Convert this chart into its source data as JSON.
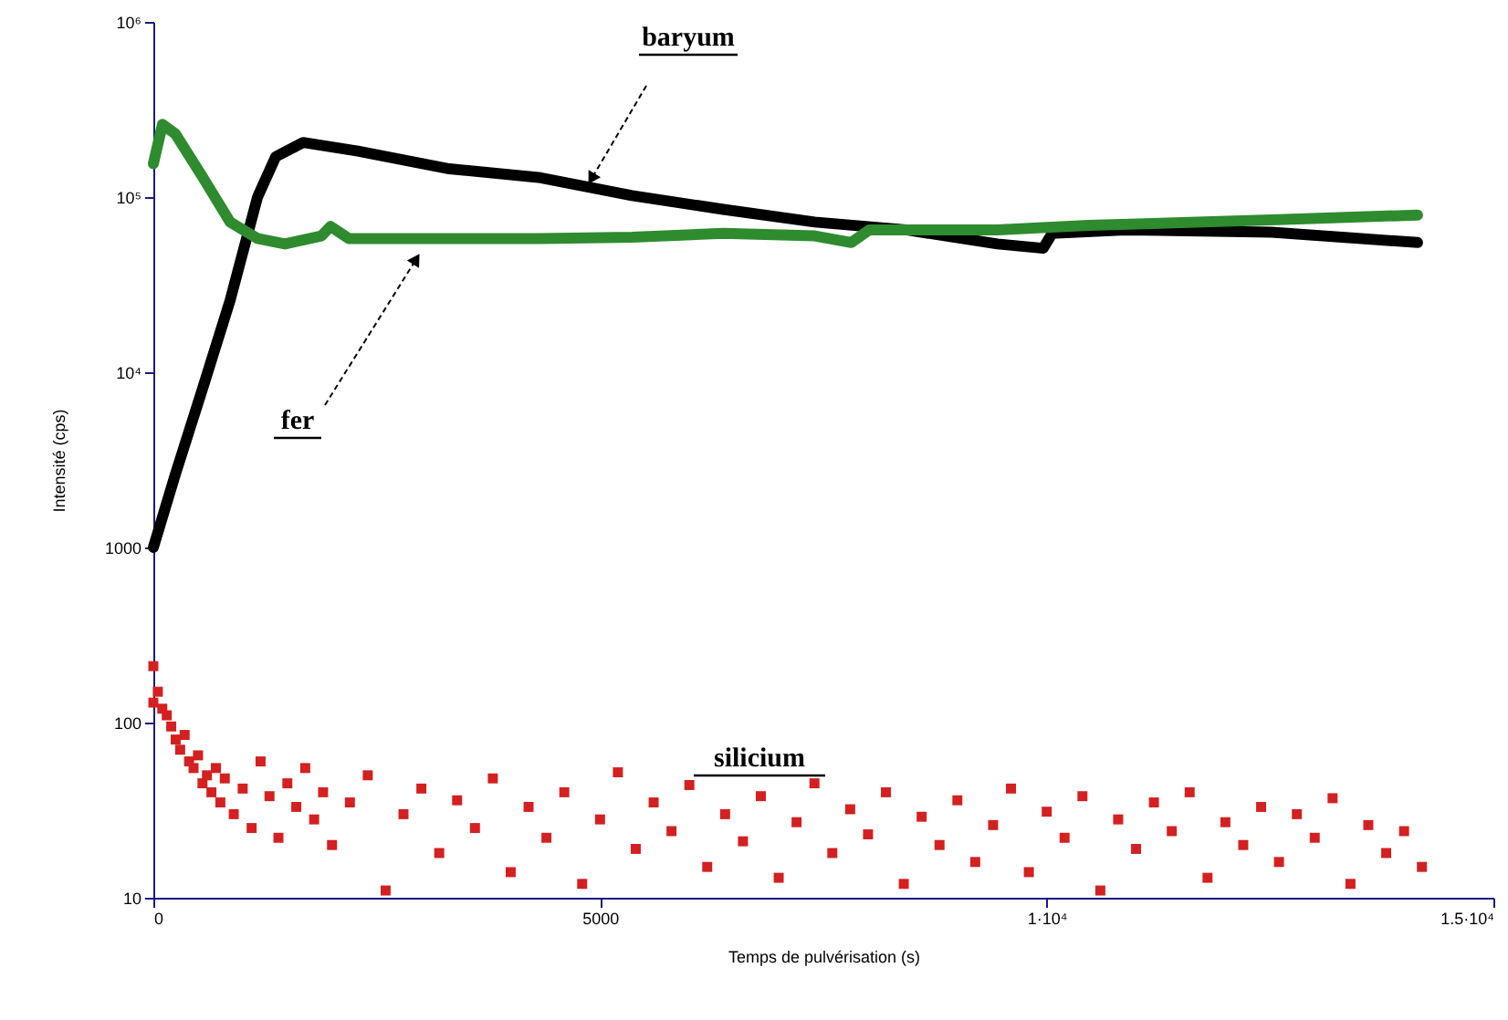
{
  "chart_data": {
    "type": "line",
    "xlabel": "Temps de pulvérisation (s)",
    "ylabel": "Intensité (cps)",
    "xlim": [
      0,
      15000
    ],
    "xticks": [
      0,
      5000,
      {
        "value": 10000,
        "label": "1·10⁴"
      },
      {
        "value": 15000,
        "label": "1.5·10⁴"
      }
    ],
    "ylim": [
      10,
      1000000
    ],
    "yticks": [
      10,
      100,
      1000,
      {
        "value": 10000,
        "label": "10⁴"
      },
      {
        "value": 100000,
        "label": "10⁵"
      },
      {
        "value": 1000000,
        "label": "10⁶"
      }
    ],
    "log": "y",
    "grid": false,
    "series": [
      {
        "name": "baryum",
        "color": "#000000",
        "x": [
          0,
          245,
          552,
          859,
          1166,
          1370,
          1677,
          2290,
          3313,
          4335,
          5358,
          6380,
          7403,
          8425,
          9448,
          9960,
          10061,
          10879,
          12515,
          14151
        ],
        "values": [
          1000,
          2600,
          8100,
          25700,
          100000,
          170000,
          205000,
          183000,
          145000,
          129000,
          102000,
          85000,
          72000,
          65000,
          54000,
          51000,
          62000,
          65000,
          63000,
          55000
        ]
      },
      {
        "name": "fer",
        "color": "#2e8b2e",
        "x": [
          0,
          102,
          245,
          552,
          859,
          1166,
          1472,
          1881,
          1984,
          2188,
          3313,
          4335,
          5358,
          6380,
          7403,
          7812,
          8016,
          9448,
          10470,
          12515,
          14151
        ],
        "values": [
          155000,
          260000,
          230000,
          130000,
          72000,
          58000,
          54000,
          60000,
          68000,
          58000,
          58000,
          58000,
          59000,
          62000,
          60000,
          55000,
          65000,
          65000,
          69000,
          74000,
          79000
        ]
      },
      {
        "name": "silicium",
        "type": "scatter",
        "marker": "square",
        "color": "#d42020",
        "x": [
          0,
          0,
          50,
          100,
          150,
          200,
          250,
          300,
          350,
          400,
          450,
          500,
          550,
          600,
          650,
          700,
          750,
          800,
          900,
          1000,
          1100,
          1200,
          1300,
          1400,
          1500,
          1600,
          1700,
          1800,
          1900,
          2000,
          2200,
          2400,
          2600,
          2800,
          3000,
          3200,
          3400,
          3600,
          3800,
          4000,
          4200,
          4400,
          4600,
          4800,
          5000,
          5200,
          5400,
          5600,
          5800,
          6000,
          6200,
          6400,
          6600,
          6800,
          7000,
          7200,
          7400,
          7600,
          7800,
          8000,
          8200,
          8400,
          8600,
          8800,
          9000,
          9200,
          9400,
          9600,
          9800,
          10000,
          10200,
          10400,
          10600,
          10800,
          11000,
          11200,
          11400,
          11600,
          11800,
          12000,
          12200,
          12400,
          12600,
          12800,
          13000,
          13200,
          13400,
          13600,
          13800,
          14000,
          14200
        ],
        "values": [
          210,
          130,
          150,
          120,
          110,
          95,
          80,
          70,
          85,
          60,
          55,
          65,
          45,
          50,
          40,
          55,
          35,
          48,
          30,
          42,
          25,
          60,
          38,
          22,
          45,
          33,
          55,
          28,
          40,
          20,
          35,
          50,
          11,
          30,
          42,
          18,
          36,
          25,
          48,
          14,
          33,
          22,
          40,
          12,
          28,
          52,
          19,
          35,
          24,
          44,
          15,
          30,
          21,
          38,
          13,
          27,
          45,
          18,
          32,
          23,
          40,
          12,
          29,
          20,
          36,
          16,
          26,
          42,
          14,
          31,
          22,
          38,
          11,
          28,
          19,
          35,
          24,
          40,
          13,
          27,
          20,
          33,
          16,
          30,
          22,
          37,
          12,
          26,
          18,
          24,
          15
        ]
      }
    ]
  }
}
